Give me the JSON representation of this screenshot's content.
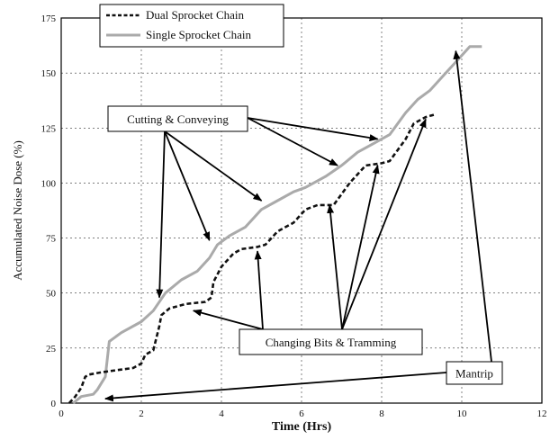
{
  "chart_data": {
    "type": "line",
    "xlabel": "Time (Hrs)",
    "ylabel": "Accumulated Noise Dose (%)",
    "xlim": [
      0,
      12
    ],
    "ylim": [
      0,
      175
    ],
    "xticks": [
      "0",
      "2",
      "4",
      "6",
      "8",
      "10",
      "12"
    ],
    "yticks": [
      "0",
      "25",
      "50",
      "75",
      "100",
      "125",
      "150",
      "175"
    ],
    "grid": true,
    "legend_position": "top-left",
    "series": [
      {
        "name": "Dual Sprocket Chain",
        "color": "#111111",
        "style": "dashed",
        "x": [
          0.2,
          0.35,
          0.5,
          0.6,
          0.7,
          1.0,
          1.4,
          1.8,
          2.0,
          2.1,
          2.3,
          2.45,
          2.5,
          2.7,
          3.1,
          3.6,
          3.75,
          3.8,
          4.0,
          4.3,
          4.5,
          4.9,
          5.1,
          5.4,
          5.8,
          6.1,
          6.4,
          6.8,
          7.0,
          7.2,
          7.6,
          8.0,
          8.2,
          8.6,
          8.8,
          9.1,
          9.3
        ],
        "y": [
          0,
          3,
          7,
          12,
          13,
          14,
          15,
          16,
          18,
          22,
          24,
          35,
          40,
          43,
          45,
          46,
          48,
          55,
          62,
          68,
          70,
          71,
          72,
          78,
          82,
          88,
          90,
          90,
          95,
          100,
          108,
          109,
          110,
          120,
          127,
          130,
          131
        ]
      },
      {
        "name": "Single Sprocket Chain",
        "color": "#aaaaaa",
        "style": "solid",
        "x": [
          0.3,
          0.5,
          0.8,
          0.9,
          1.1,
          1.2,
          1.5,
          2.0,
          2.3,
          2.6,
          3.0,
          3.4,
          3.7,
          3.9,
          4.2,
          4.6,
          5.0,
          5.4,
          5.8,
          6.1,
          6.6,
          7.0,
          7.4,
          7.8,
          8.2,
          8.6,
          8.9,
          9.2,
          9.6,
          9.9,
          10.2,
          10.5
        ],
        "y": [
          0,
          3,
          4,
          6,
          12,
          28,
          32,
          37,
          42,
          50,
          56,
          60,
          66,
          72,
          76,
          80,
          88,
          92,
          96,
          98,
          103,
          108,
          114,
          118,
          122,
          132,
          138,
          142,
          150,
          156,
          162,
          162
        ]
      }
    ],
    "annotations": [
      {
        "text": "Cutting & Conveying",
        "arrows_to": [
          [
            2.45,
            48
          ],
          [
            3.7,
            74
          ],
          [
            5.0,
            92
          ],
          [
            6.9,
            108
          ],
          [
            7.9,
            120
          ]
        ]
      },
      {
        "text": "Changing Bits & Tramming",
        "arrows_to": [
          [
            3.3,
            42
          ],
          [
            4.9,
            69
          ],
          [
            6.7,
            90
          ],
          [
            7.9,
            108
          ],
          [
            9.1,
            129
          ]
        ]
      },
      {
        "text": "Mantrip",
        "arrows_to": [
          [
            1.1,
            2
          ],
          [
            9.85,
            160
          ]
        ]
      }
    ]
  }
}
